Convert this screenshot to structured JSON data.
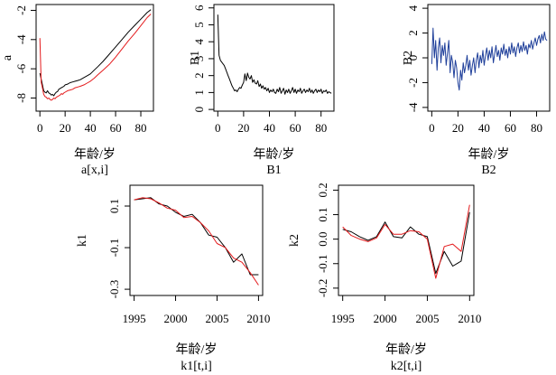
{
  "chart_data": [
    {
      "id": "a",
      "type": "line",
      "xlabel": "年龄/岁",
      "ylabel": "a",
      "caption": "a[x,i]",
      "xlim": [
        -3,
        90
      ],
      "ylim": [
        -8.9,
        -1.6
      ],
      "xticks": [
        "0",
        "20",
        "40",
        "60",
        "80"
      ],
      "yticks": [
        "-2",
        "-4",
        "-6",
        "-8"
      ],
      "series": [
        {
          "name": "black",
          "color": "#000000",
          "x": [
            0,
            1,
            2,
            3,
            4,
            5,
            6,
            7,
            8,
            9,
            10,
            11,
            12,
            13,
            14,
            15,
            16,
            17,
            18,
            19,
            20,
            22,
            24,
            26,
            28,
            30,
            32,
            35,
            38,
            40,
            43,
            46,
            50,
            55,
            60,
            65,
            70,
            75,
            80,
            85,
            88
          ],
          "y": [
            -6.3,
            -6.7,
            -7.1,
            -7.5,
            -7.6,
            -7.65,
            -7.5,
            -7.65,
            -7.7,
            -7.8,
            -7.75,
            -7.85,
            -7.7,
            -7.6,
            -7.55,
            -7.4,
            -7.35,
            -7.3,
            -7.25,
            -7.2,
            -7.1,
            -7.05,
            -6.95,
            -6.9,
            -6.85,
            -6.8,
            -6.75,
            -6.6,
            -6.45,
            -6.35,
            -6.1,
            -5.85,
            -5.5,
            -5.0,
            -4.5,
            -4.0,
            -3.5,
            -3.05,
            -2.6,
            -2.15,
            -1.95
          ]
        },
        {
          "name": "red",
          "color": "#e41a1c",
          "x": [
            0,
            1,
            2,
            3,
            4,
            5,
            6,
            7,
            8,
            9,
            10,
            11,
            12,
            13,
            14,
            15,
            16,
            17,
            18,
            19,
            20,
            22,
            24,
            26,
            28,
            30,
            32,
            35,
            38,
            40,
            43,
            46,
            50,
            55,
            60,
            65,
            70,
            75,
            80,
            85,
            88
          ],
          "y": [
            -3.9,
            -6.9,
            -7.3,
            -7.75,
            -7.9,
            -7.95,
            -8.05,
            -8.0,
            -8.1,
            -8.15,
            -8.1,
            -8.0,
            -8.05,
            -7.95,
            -7.9,
            -7.85,
            -7.8,
            -7.7,
            -7.75,
            -7.65,
            -7.6,
            -7.5,
            -7.45,
            -7.4,
            -7.3,
            -7.25,
            -7.2,
            -7.1,
            -6.95,
            -6.85,
            -6.65,
            -6.4,
            -6.1,
            -5.7,
            -5.2,
            -4.65,
            -4.1,
            -3.6,
            -3.05,
            -2.5,
            -2.25
          ]
        }
      ]
    },
    {
      "id": "B1",
      "type": "line",
      "xlabel": "年龄/岁",
      "ylabel": "B1",
      "caption": "B1",
      "xlim": [
        -3,
        90
      ],
      "ylim": [
        -0.1,
        6.2
      ],
      "xticks": [
        "0",
        "20",
        "40",
        "60",
        "80"
      ],
      "yticks": [
        "0",
        "1",
        "2",
        "3",
        "4",
        "5",
        "6"
      ],
      "series": [
        {
          "name": "black",
          "color": "#000000",
          "x": [
            0,
            1,
            2,
            3,
            4,
            5,
            6,
            7,
            8,
            9,
            10,
            11,
            12,
            13,
            14,
            15,
            16,
            17,
            18,
            19,
            20,
            21,
            22,
            23,
            24,
            25,
            26,
            27,
            28,
            29,
            30,
            31,
            32,
            33,
            34,
            35,
            36,
            37,
            38,
            39,
            40,
            41,
            42,
            43,
            44,
            45,
            46,
            47,
            48,
            49,
            50,
            51,
            52,
            53,
            54,
            55,
            56,
            57,
            58,
            59,
            60,
            61,
            62,
            63,
            64,
            65,
            66,
            67,
            68,
            69,
            70,
            71,
            72,
            73,
            74,
            75,
            76,
            77,
            78,
            79,
            80,
            81,
            82,
            83,
            84,
            85,
            86,
            87,
            88
          ],
          "y": [
            5.6,
            3.2,
            2.9,
            2.8,
            2.7,
            2.6,
            2.4,
            2.2,
            2.0,
            1.8,
            1.6,
            1.4,
            1.25,
            1.1,
            1.15,
            1.05,
            1.2,
            1.3,
            1.25,
            1.45,
            1.6,
            2.1,
            1.7,
            2.15,
            1.9,
            1.8,
            2.0,
            1.6,
            1.75,
            1.55,
            1.5,
            1.7,
            1.35,
            1.5,
            1.25,
            1.4,
            1.2,
            1.3,
            1.1,
            1.25,
            1.0,
            1.15,
            1.05,
            1.2,
            1.0,
            0.95,
            1.2,
            1.05,
            1.3,
            0.95,
            1.1,
            1.25,
            0.9,
            1.15,
            1.0,
            1.2,
            0.95,
            1.1,
            1.3,
            1.0,
            1.2,
            0.95,
            1.15,
            1.05,
            1.25,
            0.95,
            1.1,
            1.2,
            1.0,
            1.15,
            1.05,
            1.25,
            1.0,
            1.15,
            0.95,
            1.1,
            1.2,
            1.0,
            1.15,
            1.05,
            1.2,
            0.95,
            1.1,
            1.05,
            1.15,
            0.95,
            1.05,
            1.0,
            0.95
          ]
        }
      ]
    },
    {
      "id": "B2",
      "type": "line",
      "xlabel": "年龄/岁",
      "ylabel": "B2",
      "caption": "B2",
      "xlim": [
        -3,
        90
      ],
      "ylim": [
        -4.3,
        4.3
      ],
      "xticks": [
        "0",
        "20",
        "40",
        "60",
        "80"
      ],
      "yticks": [
        "-4",
        "-2",
        "0",
        "2",
        "4"
      ],
      "series": [
        {
          "name": "blue",
          "color": "#1f3f9a",
          "x": [
            0,
            1,
            2,
            3,
            4,
            5,
            6,
            7,
            8,
            9,
            10,
            11,
            12,
            13,
            14,
            15,
            16,
            17,
            18,
            19,
            20,
            21,
            22,
            23,
            24,
            25,
            26,
            27,
            28,
            29,
            30,
            31,
            32,
            33,
            34,
            35,
            36,
            37,
            38,
            39,
            40,
            41,
            42,
            43,
            44,
            45,
            46,
            47,
            48,
            49,
            50,
            51,
            52,
            53,
            54,
            55,
            56,
            57,
            58,
            59,
            60,
            61,
            62,
            63,
            64,
            65,
            66,
            67,
            68,
            69,
            70,
            71,
            72,
            73,
            74,
            75,
            76,
            77,
            78,
            79,
            80,
            81,
            82,
            83,
            84,
            85,
            86,
            87,
            88
          ],
          "y": [
            -0.5,
            2.4,
            0.0,
            1.4,
            -1.0,
            0.8,
            1.6,
            -0.4,
            1.0,
            0.2,
            1.2,
            -0.6,
            0.4,
            1.4,
            -1.2,
            0.2,
            -0.4,
            -1.6,
            -0.2,
            -0.8,
            -2.0,
            -2.6,
            -1.0,
            -1.8,
            -0.4,
            -1.2,
            -0.6,
            0.2,
            -1.0,
            -0.2,
            -1.4,
            -0.6,
            0.0,
            -1.2,
            -0.2,
            0.4,
            -0.8,
            0.2,
            -0.4,
            0.6,
            -0.6,
            0.2,
            0.8,
            -0.2,
            0.6,
            0.0,
            0.9,
            -0.4,
            0.3,
            1.0,
            0.1,
            0.6,
            -0.2,
            0.8,
            0.3,
            1.1,
            0.2,
            0.7,
            0.0,
            0.9,
            0.3,
            1.2,
            0.4,
            0.9,
            0.1,
            0.8,
            1.2,
            0.4,
            1.0,
            0.5,
            1.3,
            0.6,
            1.0,
            0.3,
            1.1,
            0.8,
            1.4,
            0.7,
            1.2,
            1.6,
            1.0,
            1.5,
            1.8,
            1.2,
            1.9,
            1.4,
            2.1,
            1.5,
            1.4
          ]
        }
      ]
    },
    {
      "id": "k1",
      "type": "line",
      "xlabel": "年龄/岁",
      "ylabel": "k1",
      "caption": "k1[t,i]",
      "xlim": [
        1994.5,
        2010.5
      ],
      "ylim": [
        -0.33,
        0.2
      ],
      "xticks": [
        "1995",
        "2000",
        "2005",
        "2010"
      ],
      "yticks": [
        "0.1",
        "-0.1",
        "-0.3"
      ],
      "series": [
        {
          "name": "black",
          "color": "#000000",
          "x": [
            1995,
            1996,
            1997,
            1998,
            1999,
            2000,
            2001,
            2002,
            2003,
            2004,
            2005,
            2006,
            2007,
            2008,
            2009,
            2010
          ],
          "y": [
            0.13,
            0.135,
            0.14,
            0.11,
            0.1,
            0.07,
            0.05,
            0.06,
            0.02,
            -0.04,
            -0.05,
            -0.1,
            -0.17,
            -0.13,
            -0.23,
            -0.23
          ]
        },
        {
          "name": "red",
          "color": "#e41a1c",
          "x": [
            1995,
            1996,
            1997,
            1998,
            1999,
            2000,
            2001,
            2002,
            2003,
            2004,
            2005,
            2006,
            2007,
            2008,
            2009,
            2010
          ],
          "y": [
            0.13,
            0.14,
            0.135,
            0.115,
            0.09,
            0.08,
            0.045,
            0.05,
            0.02,
            -0.02,
            -0.08,
            -0.1,
            -0.15,
            -0.17,
            -0.22,
            -0.28
          ]
        }
      ]
    },
    {
      "id": "k2",
      "type": "line",
      "xlabel": "年龄/岁",
      "ylabel": "k2",
      "caption": "k2[t,i]",
      "xlim": [
        1994.5,
        2010.5
      ],
      "ylim": [
        -0.23,
        0.22
      ],
      "xticks": [
        "1995",
        "2000",
        "2005",
        "2010"
      ],
      "yticks": [
        "0.2",
        "0.1",
        "0.0",
        "-0.1",
        "-0.2"
      ],
      "series": [
        {
          "name": "black",
          "color": "#000000",
          "x": [
            1995,
            1996,
            1997,
            1998,
            1999,
            2000,
            2001,
            2002,
            2003,
            2004,
            2005,
            2006,
            2007,
            2008,
            2009,
            2010
          ],
          "y": [
            0.04,
            0.03,
            0.01,
            -0.005,
            0.01,
            0.07,
            0.01,
            0.005,
            0.05,
            0.02,
            0.01,
            -0.14,
            -0.05,
            -0.11,
            -0.09,
            0.11
          ]
        },
        {
          "name": "red",
          "color": "#e41a1c",
          "x": [
            1995,
            1996,
            1997,
            1998,
            1999,
            2000,
            2001,
            2002,
            2003,
            2004,
            2005,
            2006,
            2007,
            2008,
            2009,
            2010
          ],
          "y": [
            0.05,
            0.015,
            0.0,
            -0.01,
            0.005,
            0.06,
            0.02,
            0.02,
            0.035,
            0.03,
            0.0,
            -0.16,
            -0.03,
            -0.02,
            -0.05,
            0.14
          ]
        }
      ]
    }
  ]
}
